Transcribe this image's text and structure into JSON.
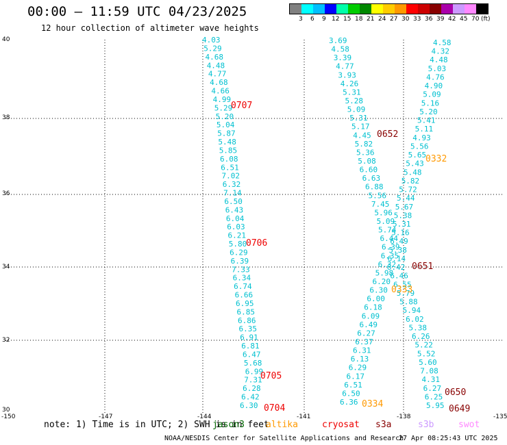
{
  "header": {
    "title": "00:00 — 11:59 UTC 04/23/2025",
    "subtitle": "12 hour collection of altimeter wave heights"
  },
  "legend": {
    "unit": "(ft)",
    "colors": [
      "#808080",
      "#00ffff",
      "#00bfff",
      "#0000ff",
      "#00ffaa",
      "#00cc00",
      "#008800",
      "#ffff00",
      "#ffcc00",
      "#ff9900",
      "#ff0000",
      "#cc0000",
      "#880000",
      "#aa00aa",
      "#cc99ff",
      "#ff88ff",
      "#000000"
    ],
    "labels": [
      "3",
      "6",
      "9",
      "12",
      "15",
      "18",
      "21",
      "24",
      "27",
      "30",
      "33",
      "36",
      "39",
      "42",
      "45",
      "70"
    ]
  },
  "map": {
    "lon_labels": [
      "-150",
      "-147",
      "-144",
      "-141",
      "-138",
      "-135"
    ],
    "lat_labels": [
      "40",
      "38",
      "36",
      "34",
      "32",
      "30"
    ],
    "tracks": [
      {
        "values": [
          "4.03",
          "5.29",
          "4.68",
          "4.48",
          "4.77",
          "4.68",
          "4.66",
          "4.99",
          "5.29",
          "5.20",
          "5.04",
          "5.87",
          "5.48",
          "5.85",
          "6.08",
          "6.51",
          "7.02",
          "6.32",
          "7.14",
          "6.50",
          "6.43",
          "6.04",
          "6.03",
          "6.21",
          "5.80",
          "6.29",
          "6.39",
          "7.33",
          "6.34",
          "6.74",
          "6.66",
          "6.95",
          "6.85",
          "6.86",
          "6.35",
          "6.91",
          "6.81",
          "6.47",
          "5.68",
          "6.99",
          "7.31",
          "6.28",
          "6.42",
          "6.30"
        ]
      },
      {
        "values": [
          "3.69",
          "4.58",
          "3.39",
          "4.77",
          "3.93",
          "4.26",
          "5.31",
          "5.28",
          "5.09",
          "5.31",
          "5.17",
          "4.45",
          "5.82",
          "5.36",
          "5.08",
          "6.60",
          "6.63",
          "6.88",
          "5.56",
          "7.45",
          "5.96",
          "5.09",
          "5.74",
          "6.44",
          "6.39",
          "6.35",
          "6.32",
          "5.98",
          "6.20",
          "6.30",
          "6.00",
          "6.18",
          "6.09",
          "6.49",
          "6.27",
          "6.37",
          "6.31",
          "6.13",
          "6.29",
          "6.17",
          "6.51",
          "6.50",
          "6.36"
        ]
      },
      {
        "values": [
          "4.58",
          "4.32",
          "4.48",
          "5.03",
          "4.76",
          "4.90",
          "5.09",
          "5.16",
          "5.20",
          "5.41",
          "5.11",
          "4.93",
          "5.56",
          "5.65",
          "5.43",
          "5.48",
          "5.82",
          "5.72",
          "5.44",
          "5.67",
          "5.38",
          "5.31",
          "5.16",
          "6.49",
          "5.38",
          "6.14",
          "6.42",
          "6.46",
          "6.55",
          "5.79",
          "5.88",
          "5.94",
          "6.02",
          "5.38",
          "6.26",
          "5.22",
          "5.52",
          "5.60",
          "7.08",
          "4.31",
          "6.27",
          "6.25",
          "5.95"
        ]
      }
    ],
    "passes": [
      {
        "label": "0707",
        "color": "#ee0000"
      },
      {
        "label": "0706",
        "color": "#ee0000"
      },
      {
        "label": "0705",
        "color": "#ee0000"
      },
      {
        "label": "0704",
        "color": "#ee0000"
      },
      {
        "label": "0652",
        "color": "#880000"
      },
      {
        "label": "0651",
        "color": "#880000"
      },
      {
        "label": "0650",
        "color": "#880000"
      },
      {
        "label": "0649",
        "color": "#880000"
      },
      {
        "label": "0332",
        "color": "#ff9900"
      },
      {
        "label": "0333",
        "color": "#ff9900"
      },
      {
        "label": "0334",
        "color": "#ff9900"
      }
    ]
  },
  "note": "note: 1) Time is in UTC; 2) SWH is in feet",
  "satellites": [
    {
      "name": "jason3",
      "color": "#006600"
    },
    {
      "name": "altika",
      "color": "#ff9900"
    },
    {
      "name": "cryosat",
      "color": "#ee0000"
    },
    {
      "name": "s3a",
      "color": "#880000"
    },
    {
      "name": "s3b",
      "color": "#cc99ff"
    },
    {
      "name": "swot",
      "color": "#ff88ff"
    }
  ],
  "footer": {
    "credit": "NOAA/NESDIS Center for Satellite Applications and Research",
    "timestamp": "27 Apr 08:25:43 UTC 2025"
  }
}
